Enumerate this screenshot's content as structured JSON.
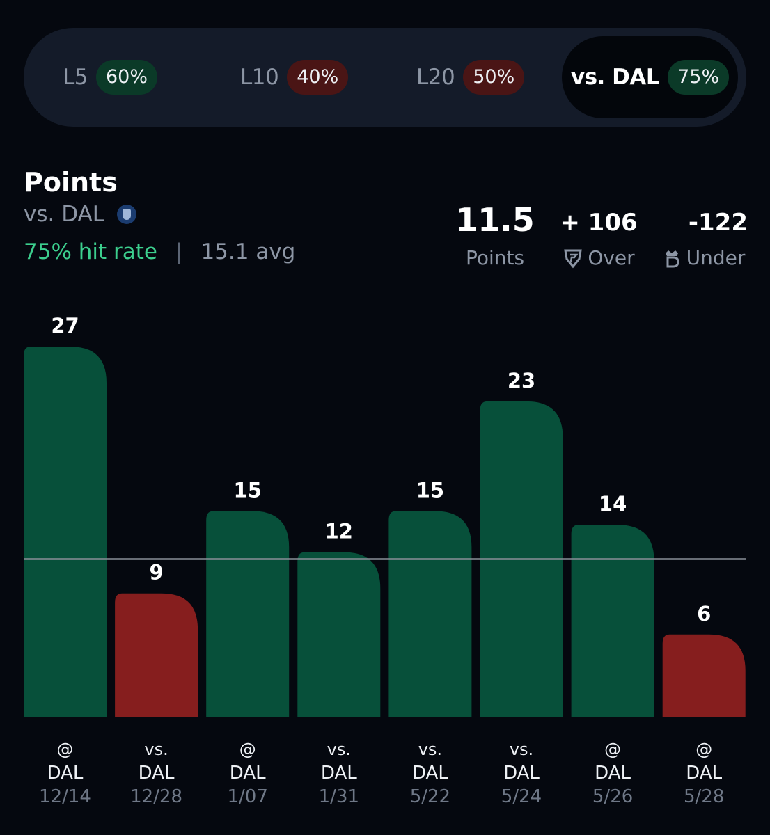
{
  "tabs": [
    {
      "label": "L5",
      "pct": "60%",
      "status": "green",
      "active": false
    },
    {
      "label": "L10",
      "pct": "40%",
      "status": "red",
      "active": false
    },
    {
      "label": "L20",
      "pct": "50%",
      "status": "red",
      "active": false
    },
    {
      "label": "vs. DAL",
      "pct": "75%",
      "status": "green",
      "active": true
    }
  ],
  "stat": {
    "title": "Points",
    "opponent": "vs. DAL",
    "hit_rate": "75% hit rate",
    "separator": "|",
    "average": "15.1 avg",
    "team_logo_icon": "mavericks-logo-icon"
  },
  "line": {
    "value": "11.5",
    "value_label": "Points",
    "over_odds": "+ 106",
    "over_label": "Over",
    "over_icon": "fanduel-icon",
    "under_odds": "-122",
    "under_label": "Under",
    "under_icon": "draftkings-icon"
  },
  "colors": {
    "hit": "#07503a",
    "miss": "#861e1e",
    "hit_text": "#3ccf8e",
    "line": "#8a8f98"
  },
  "chart_data": {
    "type": "bar",
    "threshold": 11.5,
    "categories": [
      "@ DAL 12/14",
      "vs. DAL 12/28",
      "@ DAL 1/07",
      "vs. DAL 1/31",
      "vs. DAL 5/22",
      "vs. DAL 5/24",
      "@ DAL 5/26",
      "@ DAL 5/28"
    ],
    "games": [
      {
        "loc": "@",
        "opp": "DAL",
        "date": "12/14",
        "value": 27
      },
      {
        "loc": "vs.",
        "opp": "DAL",
        "date": "12/28",
        "value": 9
      },
      {
        "loc": "@",
        "opp": "DAL",
        "date": "1/07",
        "value": 15
      },
      {
        "loc": "vs.",
        "opp": "DAL",
        "date": "1/31",
        "value": 12
      },
      {
        "loc": "vs.",
        "opp": "DAL",
        "date": "5/22",
        "value": 15
      },
      {
        "loc": "vs.",
        "opp": "DAL",
        "date": "5/24",
        "value": 23
      },
      {
        "loc": "@",
        "opp": "DAL",
        "date": "5/26",
        "value": 14
      },
      {
        "loc": "@",
        "opp": "DAL",
        "date": "5/28",
        "value": 6
      }
    ]
  }
}
